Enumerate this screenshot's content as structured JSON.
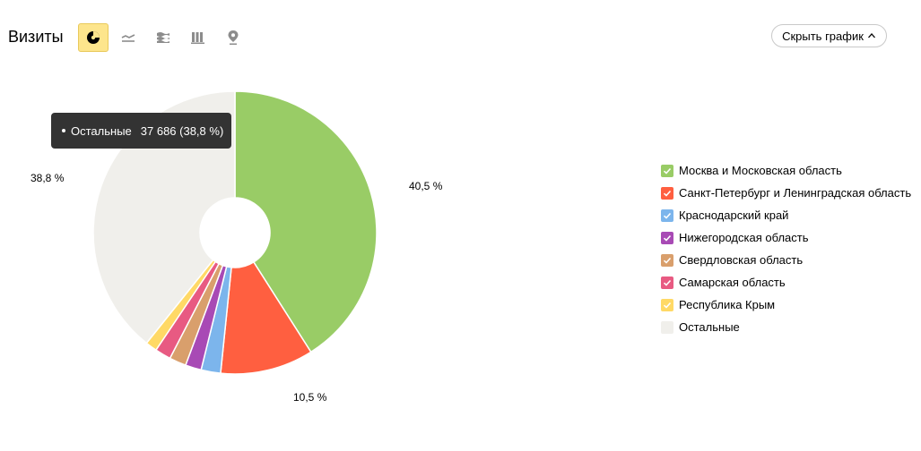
{
  "header": {
    "title": "Визиты",
    "hide_chart_label": "Скрыть график",
    "view_buttons": [
      {
        "icon": "pie-chart-icon",
        "active": true
      },
      {
        "icon": "line-chart-icon",
        "active": false
      },
      {
        "icon": "area-chart-icon",
        "active": false
      },
      {
        "icon": "bar-chart-icon",
        "active": false
      },
      {
        "icon": "map-icon",
        "active": false
      }
    ]
  },
  "tooltip": {
    "name": "Остальные",
    "value": "37 686 (38,8 %)"
  },
  "chart_data": {
    "type": "pie",
    "donut": true,
    "categories": [
      "Москва и Московская область",
      "Санкт-Петербург и Ленинградская область",
      "Краснодарский край",
      "Нижегородская область",
      "Свердловская область",
      "Самарская область",
      "Республика Крым",
      "Остальные"
    ],
    "values": [
      40.5,
      10.5,
      2.2,
      1.8,
      1.9,
      1.8,
      1.3,
      38.8
    ],
    "colors": [
      "#99cc66",
      "#ff5f40",
      "#7cb5ec",
      "#a84ab5",
      "#d99f6c",
      "#e85a82",
      "#ffd966",
      "#f0efeb"
    ],
    "data_labels": {
      "0": "40,5 %",
      "1": "10,5 %",
      "7": "38,8 %"
    },
    "legend_position": "right"
  }
}
